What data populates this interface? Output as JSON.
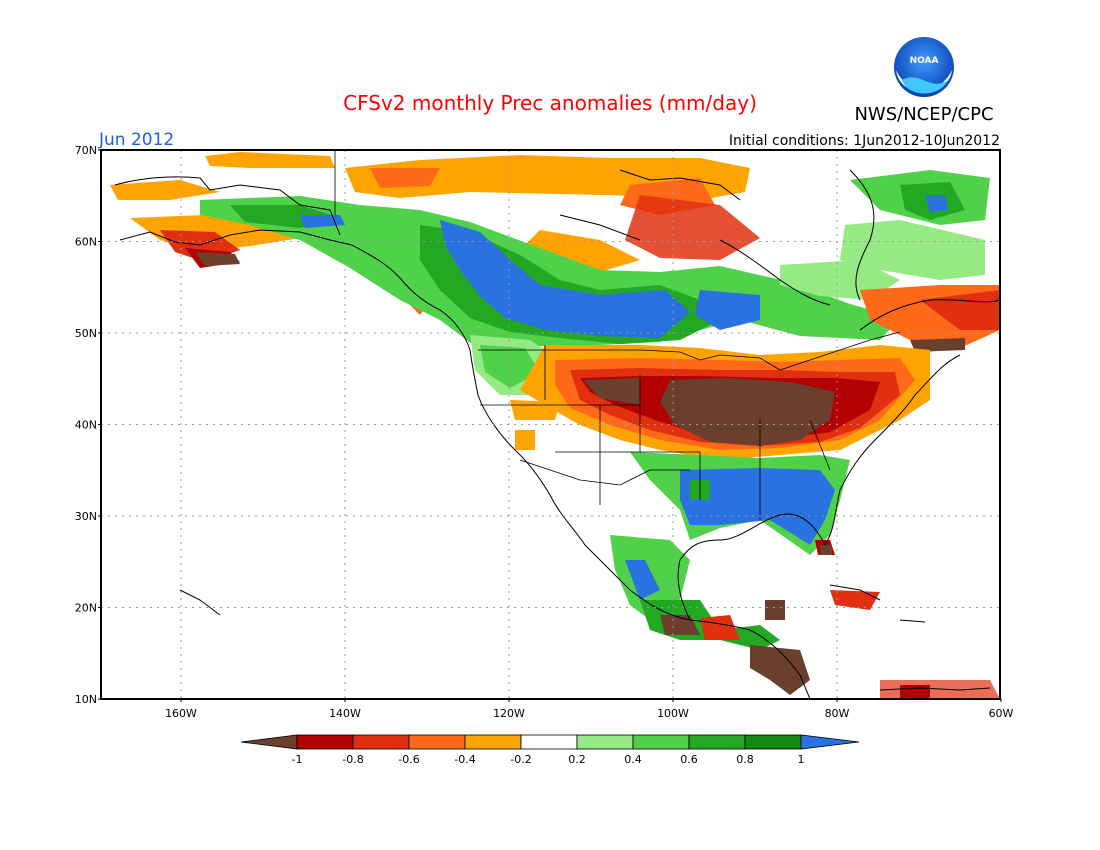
{
  "header": {
    "title": "CFSv2 monthly Prec anomalies (mm/day)",
    "month_label": "Jun 2012",
    "initial_conditions": "Initial conditions: 1Jun2012-10Jun2012",
    "agency": "NWS/NCEP/CPC",
    "logo_text": "NOAA"
  },
  "axes": {
    "lat_labels": [
      "70N",
      "60N",
      "50N",
      "40N",
      "30N",
      "20N",
      "10N"
    ],
    "lon_labels": [
      "160W",
      "140W",
      "120W",
      "100W",
      "80W",
      "60W"
    ]
  },
  "colorbar": {
    "labels": [
      "-1",
      "-0.8",
      "-0.6",
      "-0.4",
      "-0.2",
      "0.2",
      "0.4",
      "0.6",
      "0.8",
      "1"
    ],
    "colors": [
      "#6b3f2e",
      "#b30000",
      "#e03010",
      "#ff6a1a",
      "#ffa300",
      "#ffffff",
      "#96ea84",
      "#4fd14a",
      "#22a822",
      "#118a11",
      "#2a72e0"
    ]
  },
  "colors": {
    "title": "#ff0000",
    "month_label": "#1f5fd8",
    "text": "#000000",
    "grid": "#999999"
  }
}
